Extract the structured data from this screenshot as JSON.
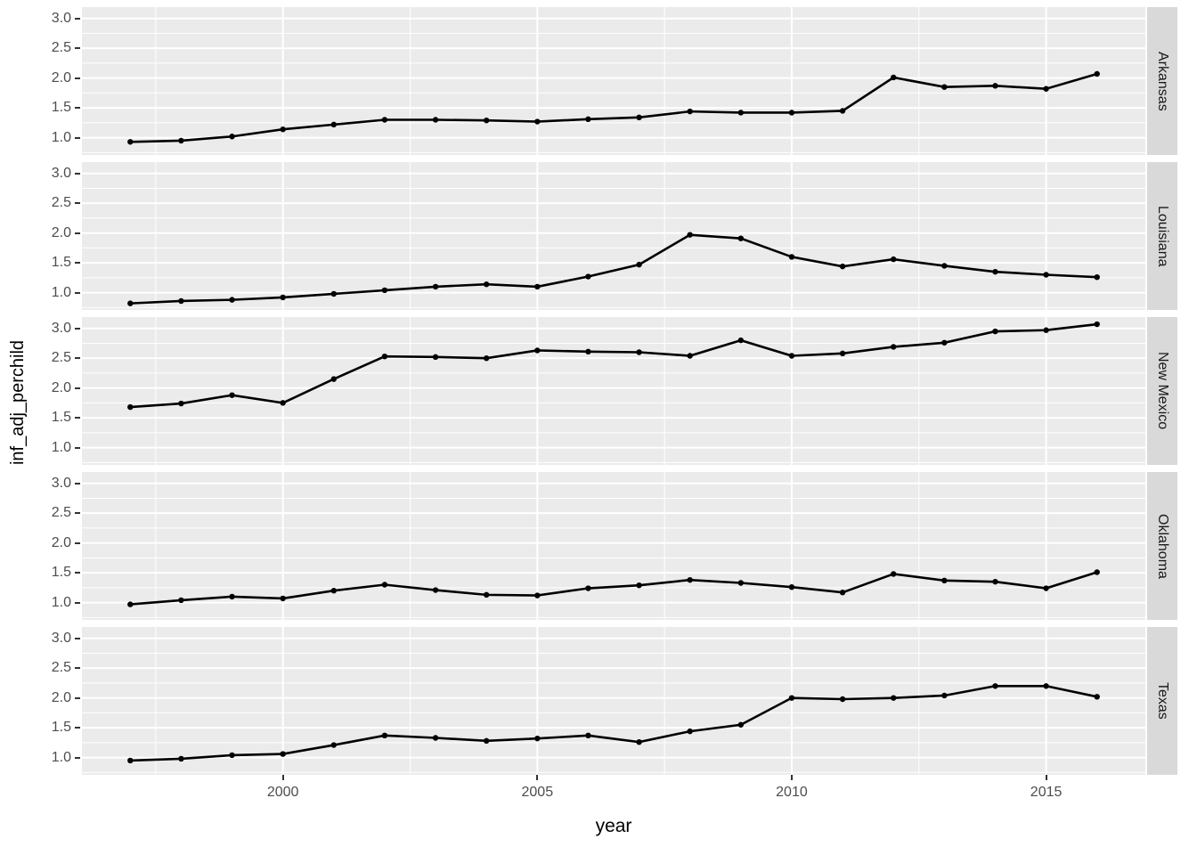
{
  "chart_data": {
    "type": "line",
    "title": "",
    "xlabel": "year",
    "ylabel": "inf_adj_perchild",
    "x": [
      1997,
      1998,
      1999,
      2000,
      2001,
      2002,
      2003,
      2004,
      2005,
      2006,
      2007,
      2008,
      2009,
      2010,
      2011,
      2012,
      2013,
      2014,
      2015,
      2016
    ],
    "xlim": [
      1996.05,
      2016.95
    ],
    "ylim": [
      0.71,
      3.19
    ],
    "x_ticks": [
      2000,
      2005,
      2010,
      2015
    ],
    "y_ticks": [
      3.0,
      2.5,
      2.0,
      1.5,
      1.0
    ],
    "y_tick_labels": [
      "3.0",
      "2.5",
      "2.0",
      "1.5",
      "1.0"
    ],
    "y_minor_ticks": [
      0.75,
      1.25,
      1.75,
      2.25,
      2.75
    ],
    "x_minor_ticks": [
      1997.5,
      2002.5,
      2007.5,
      2012.5
    ],
    "grid": "on",
    "legend_position": "none",
    "facet_layout": "rows",
    "series": [
      {
        "name": "Arkansas",
        "values": [
          0.93,
          0.95,
          1.02,
          1.14,
          1.22,
          1.3,
          1.3,
          1.29,
          1.27,
          1.31,
          1.34,
          1.44,
          1.42,
          1.42,
          1.45,
          2.01,
          1.85,
          1.87,
          1.82,
          2.07
        ]
      },
      {
        "name": "Louisiana",
        "values": [
          0.82,
          0.86,
          0.88,
          0.92,
          0.98,
          1.04,
          1.1,
          1.14,
          1.1,
          1.27,
          1.47,
          1.97,
          1.91,
          1.6,
          1.44,
          1.56,
          1.45,
          1.35,
          1.3,
          1.26
        ]
      },
      {
        "name": "New Mexico",
        "values": [
          1.68,
          1.74,
          1.88,
          1.75,
          2.15,
          2.53,
          2.52,
          2.5,
          2.63,
          2.61,
          2.6,
          2.54,
          2.8,
          2.54,
          2.58,
          2.69,
          2.76,
          2.95,
          2.97,
          3.07
        ]
      },
      {
        "name": "Oklahoma",
        "values": [
          0.97,
          1.04,
          1.1,
          1.07,
          1.2,
          1.3,
          1.21,
          1.13,
          1.12,
          1.24,
          1.29,
          1.38,
          1.33,
          1.26,
          1.17,
          1.48,
          1.37,
          1.35,
          1.24,
          1.51
        ]
      },
      {
        "name": "Texas",
        "values": [
          0.95,
          0.98,
          1.04,
          1.06,
          1.21,
          1.37,
          1.33,
          1.28,
          1.32,
          1.37,
          1.26,
          1.44,
          1.55,
          2.0,
          1.98,
          2.0,
          2.04,
          2.2,
          2.2,
          2.02
        ]
      }
    ],
    "colors": {
      "panel_background": "#EBEBEB",
      "strip_background": "#D9D9D9",
      "grid_major": "#FFFFFF",
      "grid_minor": "#FFFFFF",
      "line": "#000000",
      "point": "#000000",
      "tick_text": "#4D4D4D",
      "axis_title_text": "#000000",
      "strip_text": "#1A1A1A"
    }
  },
  "axes": {
    "x_title": "year",
    "y_title": "inf_adj_perchild"
  }
}
